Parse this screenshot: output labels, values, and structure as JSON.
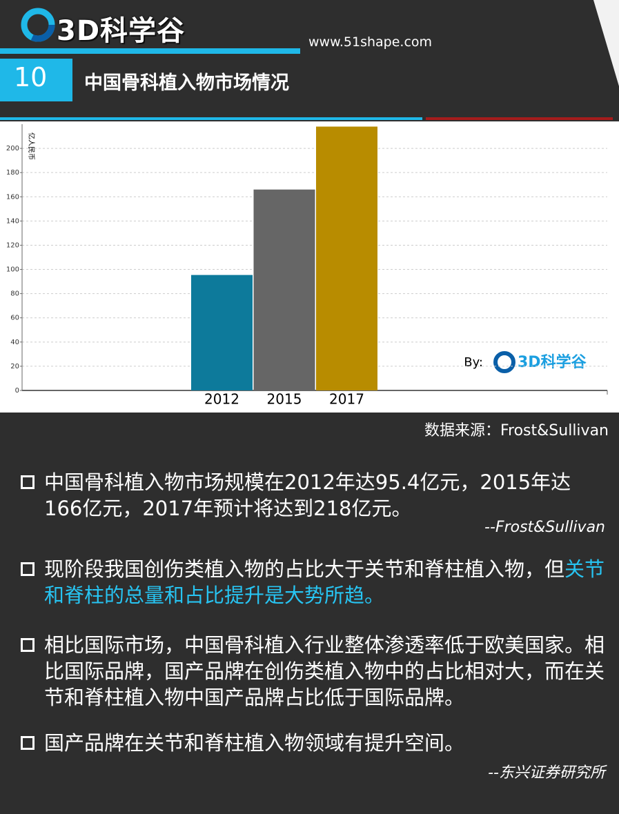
{
  "header": {
    "logo": "3D科学谷",
    "url": "www.51shape.com",
    "number": "10",
    "title": "中国骨科植入物市场情况"
  },
  "chart_data": {
    "type": "bar",
    "y_label": "亿人民币",
    "categories": [
      "2012",
      "2015",
      "2017"
    ],
    "values": [
      95.4,
      166,
      218
    ],
    "colors": [
      "#0d7a9b",
      "#666666",
      "#b88c00"
    ],
    "ylim": [
      0,
      220
    ],
    "yticks": [
      0,
      20,
      40,
      60,
      80,
      100,
      120,
      140,
      160,
      180,
      200
    ],
    "grid": true
  },
  "watermark": {
    "by": "By:",
    "logo": "3D科学谷"
  },
  "source": "数据来源：Frost&Sullivan",
  "bullets": [
    {
      "text": "中国骨科植入物市场规模在2012年达95.4亿元，2015年达166亿元，2017年预计将达到218亿元。",
      "citation": "--Frost&Sullivan"
    },
    {
      "text": "现阶段我国创伤类植入物的占比大于关节和脊柱植入物，但",
      "highlight": "关节和脊柱的总量和占比提升是大势所趋。"
    },
    {
      "text": "相比国际市场，中国骨科植入行业整体渗透率低于欧美国家。相比国际品牌，国产品牌在创伤类植入物中的占比相对大，而在关节和脊柱植入物中国产品牌占比低于国际品牌。"
    },
    {
      "text": "国产品牌在关节和脊柱植入物领域有提升空间。",
      "citation": "--东兴证券研究所"
    }
  ]
}
